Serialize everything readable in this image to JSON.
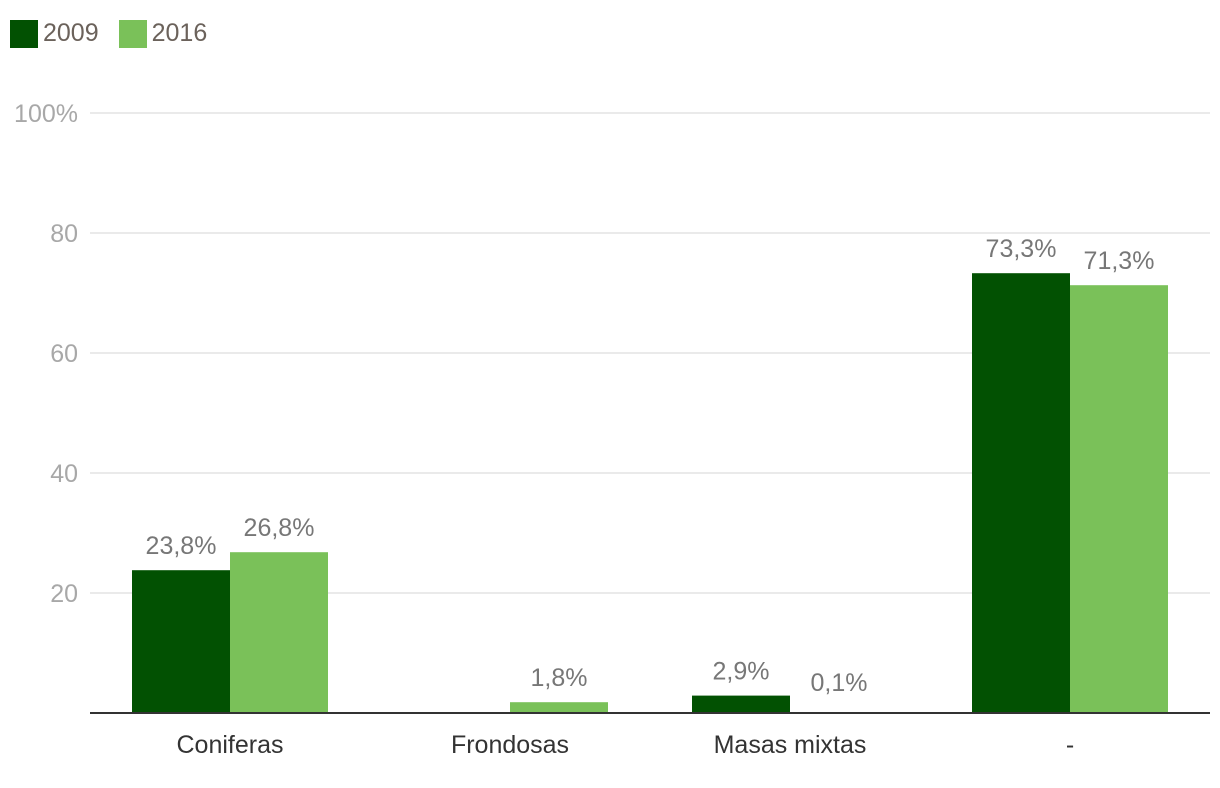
{
  "chart_data": {
    "type": "bar",
    "categories": [
      "Coniferas",
      "Frondosas",
      "Masas mixtas",
      "-"
    ],
    "series": [
      {
        "name": "2009",
        "color": "#025102",
        "values": [
          23.8,
          null,
          2.9,
          73.3
        ],
        "labels": [
          "23,8%",
          "",
          "2,9%",
          "73,3%"
        ]
      },
      {
        "name": "2016",
        "color": "#7ac159",
        "values": [
          26.8,
          1.8,
          0.1,
          71.3
        ],
        "labels": [
          "26,8%",
          "1,8%",
          "0,1%",
          "71,3%"
        ]
      }
    ],
    "y_ticks": [
      "20",
      "40",
      "60",
      "80",
      "100%"
    ],
    "ylim": [
      0,
      100
    ],
    "grid": true,
    "legend_position": "top-left",
    "title": "",
    "xlabel": "",
    "ylabel": ""
  }
}
